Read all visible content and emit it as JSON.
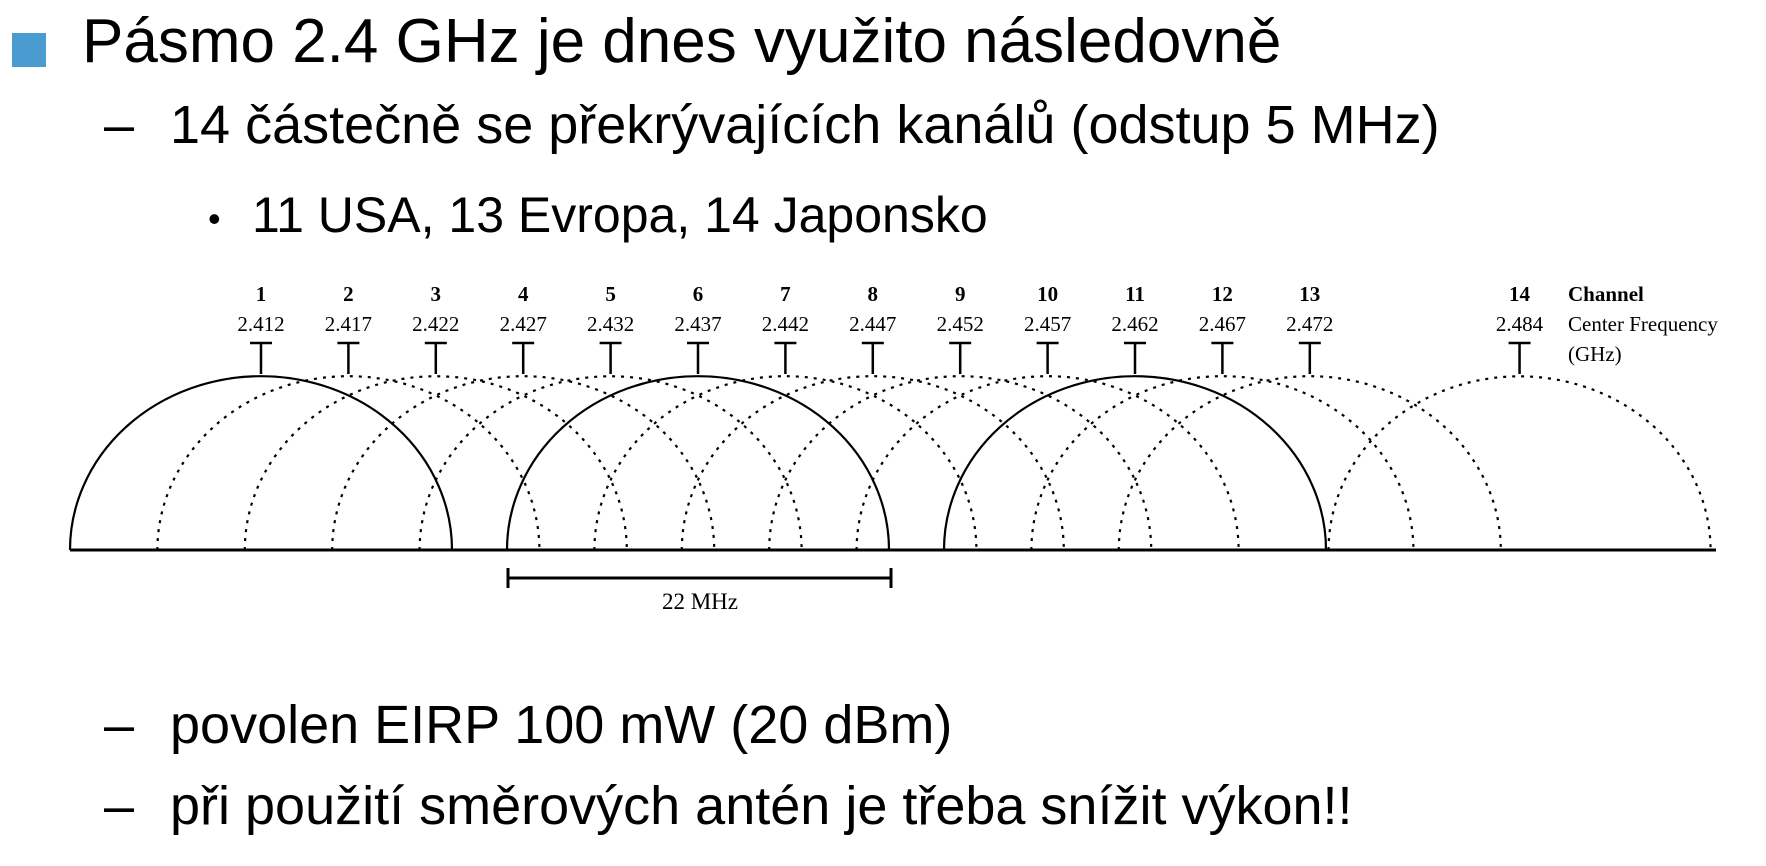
{
  "slide": {
    "title": "Pásmo 2.4 GHz je dnes využito následovně",
    "dash": "–",
    "bullet_dot": "•",
    "sub1": "14 částečně se překrývajících kanálů (odstup 5 MHz)",
    "sub1_1": "11 USA, 13 Evropa, 14 Japonsko",
    "sub2": "povolen EIRP 100 mW (20 dBm)",
    "sub3": "při použití směrových antén je třeba snížit výkon!!"
  },
  "diagram": {
    "channel_header": "Channel",
    "freq_header": "Center Frequency",
    "freq_unit": "(GHz)",
    "width_label": "22 MHz",
    "channels": [
      {
        "ch": "1",
        "freq": "2.412",
        "solid": true
      },
      {
        "ch": "2",
        "freq": "2.417",
        "solid": false
      },
      {
        "ch": "3",
        "freq": "2.422",
        "solid": false
      },
      {
        "ch": "4",
        "freq": "2.427",
        "solid": false
      },
      {
        "ch": "5",
        "freq": "2.432",
        "solid": false
      },
      {
        "ch": "6",
        "freq": "2.437",
        "solid": true
      },
      {
        "ch": "7",
        "freq": "2.442",
        "solid": false
      },
      {
        "ch": "8",
        "freq": "2.447",
        "solid": false
      },
      {
        "ch": "9",
        "freq": "2.452",
        "solid": false
      },
      {
        "ch": "10",
        "freq": "2.457",
        "solid": false
      },
      {
        "ch": "11",
        "freq": "2.462",
        "solid": true
      },
      {
        "ch": "12",
        "freq": "2.467",
        "solid": false
      },
      {
        "ch": "13",
        "freq": "2.472",
        "solid": false
      },
      {
        "ch": "14",
        "freq": "2.484",
        "solid": false
      }
    ]
  }
}
